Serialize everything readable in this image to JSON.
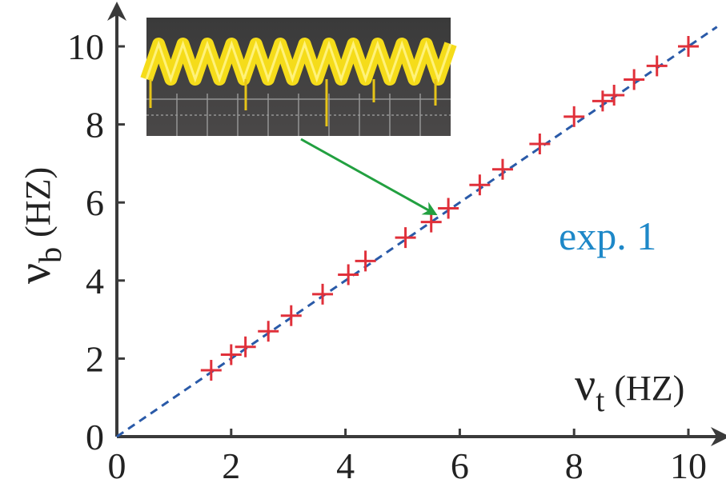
{
  "chart_data": {
    "type": "scatter",
    "xlabel": {
      "symbol": "ν",
      "subscript": "t",
      "unit": "(HZ)"
    },
    "ylabel": {
      "symbol": "ν",
      "subscript": "b",
      "unit": "(HZ)"
    },
    "xlim": [
      0,
      10
    ],
    "ylim": [
      0,
      10
    ],
    "xticks": [
      "0",
      "2",
      "4",
      "6",
      "8",
      "10"
    ],
    "yticks": [
      "0",
      "2",
      "4",
      "6",
      "8",
      "10"
    ],
    "grid": false,
    "annotation": "exp. 1",
    "colors": {
      "markers": "#e0303a",
      "fit_line": "#2a5aa8",
      "annotation": "#1e88c8",
      "arrow": "#22a040",
      "axes": "#3a3a3a"
    },
    "fit_line": {
      "style": "dashed",
      "x": [
        0,
        10.5
      ],
      "y": [
        0,
        10.5
      ]
    },
    "series": [
      {
        "marker": "plus",
        "x": [
          1.65,
          2.0,
          2.25,
          2.65,
          3.05,
          3.6,
          4.05,
          4.35,
          5.05,
          5.5,
          5.8,
          6.35,
          6.75,
          7.4,
          8.0,
          8.5,
          8.7,
          9.05,
          9.45,
          10.0
        ],
        "y": [
          1.7,
          2.1,
          2.3,
          2.7,
          3.1,
          3.65,
          4.15,
          4.5,
          5.1,
          5.5,
          5.85,
          6.45,
          6.85,
          7.5,
          8.2,
          8.6,
          8.75,
          9.15,
          9.5,
          10.0
        ]
      }
    ],
    "inset": {
      "description": "oscilloscope trace",
      "points_to": {
        "x": 5.65,
        "y": 5.75
      }
    }
  }
}
